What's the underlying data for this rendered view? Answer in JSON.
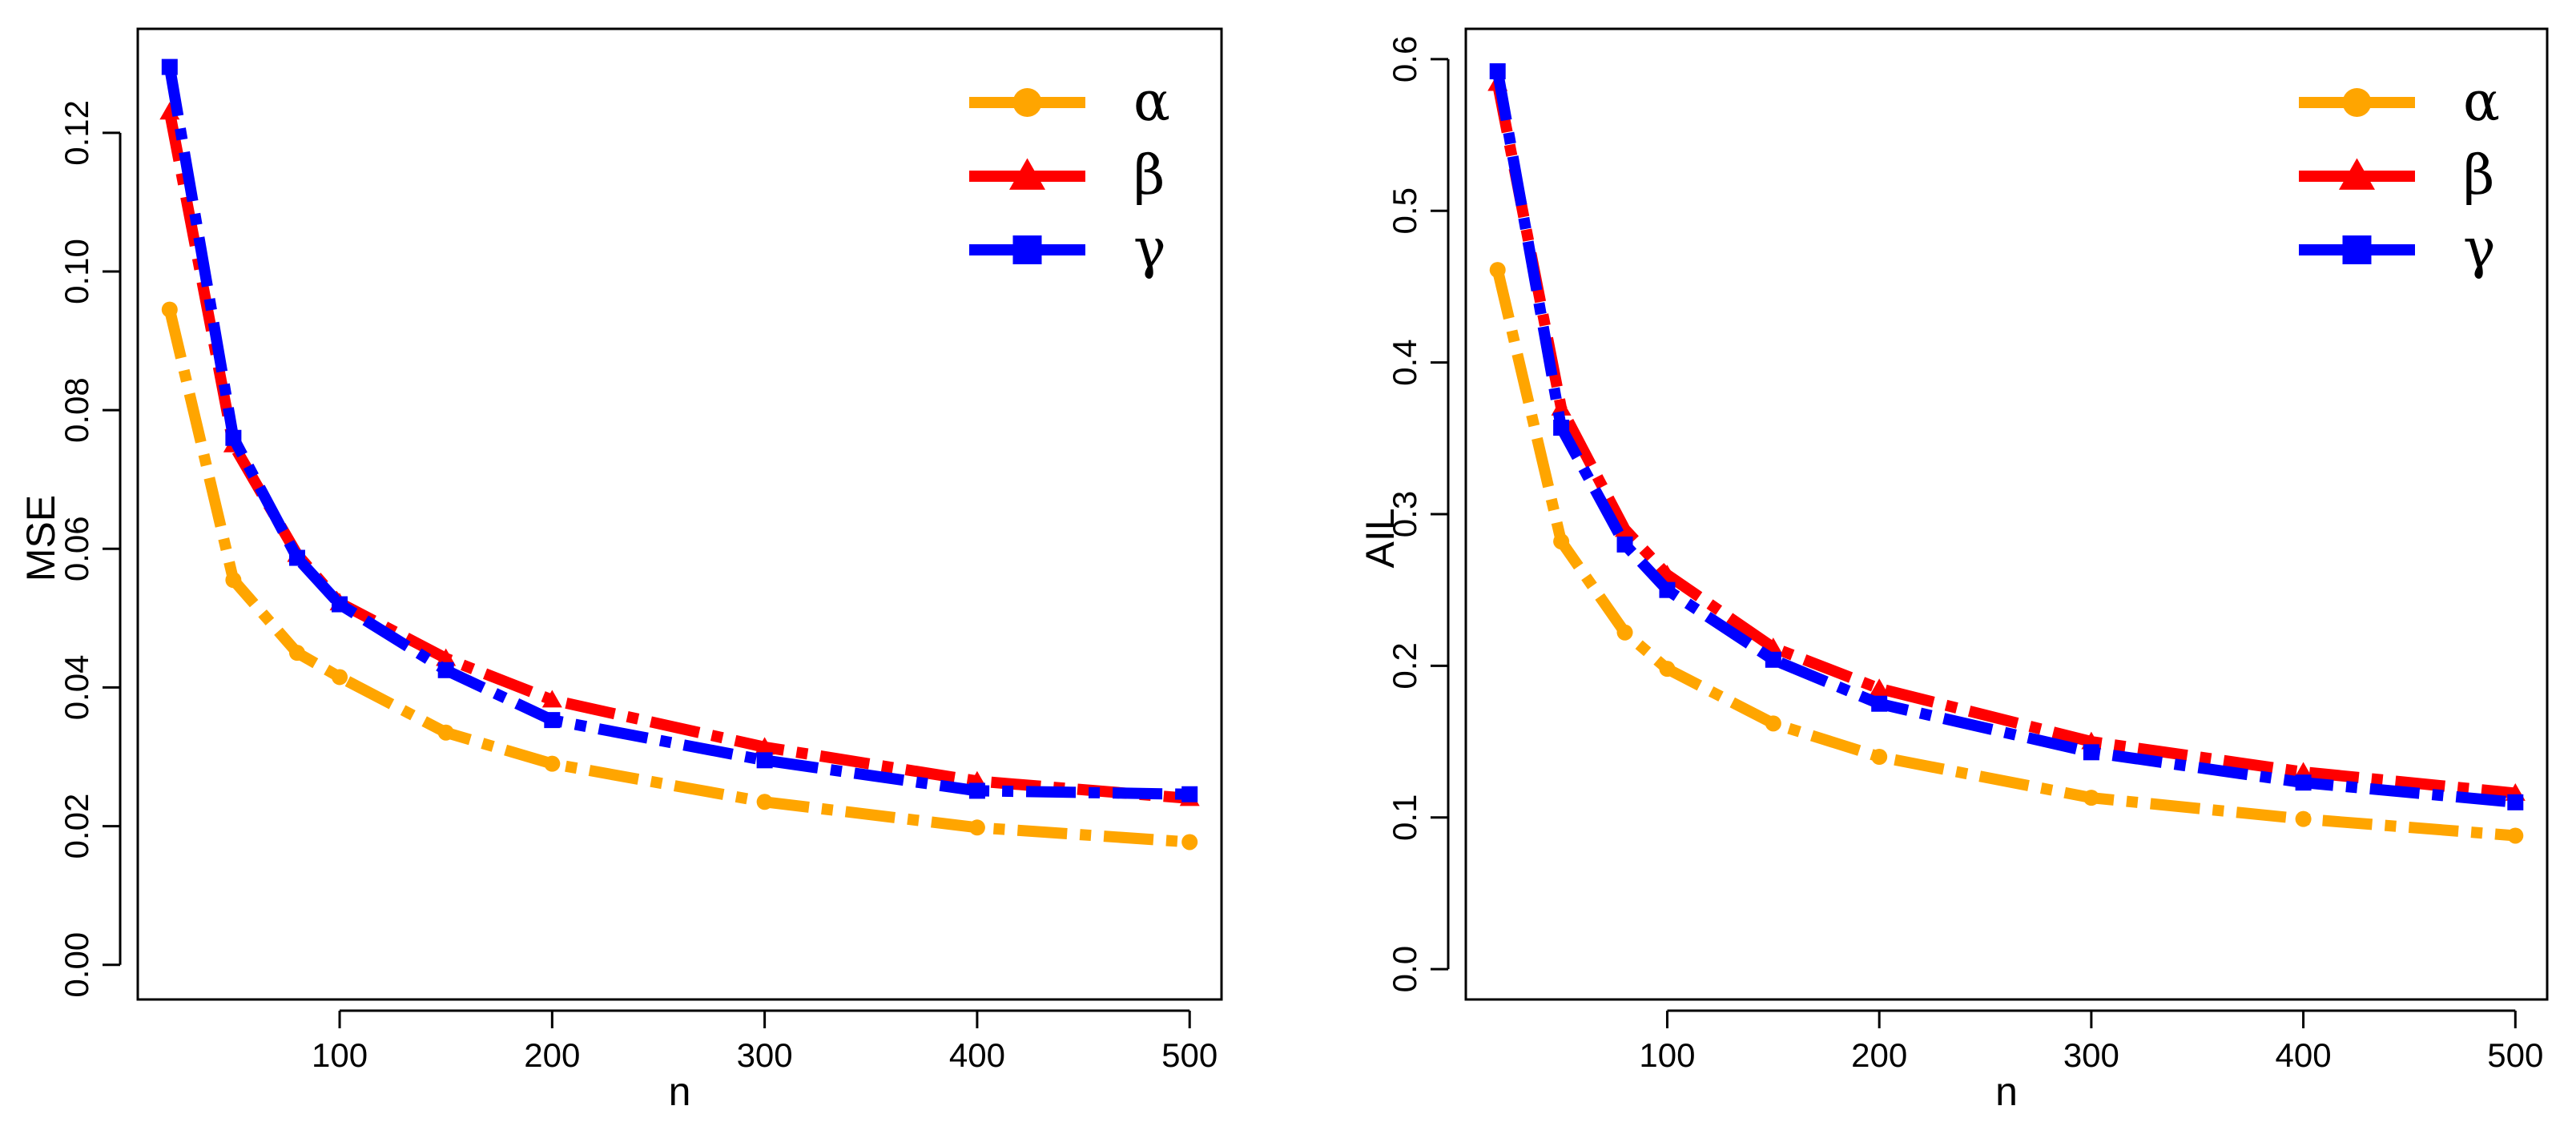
{
  "colors": {
    "alpha": "#FFA500",
    "beta": "#FF0000",
    "gamma": "#0000FF"
  },
  "chart_data": [
    {
      "type": "line",
      "xlabel": "n",
      "ylabel": "MSE",
      "x": [
        20,
        50,
        80,
        100,
        150,
        200,
        300,
        400,
        500
      ],
      "xlim": [
        5,
        515
      ],
      "ylim": [
        -0.005,
        0.135
      ],
      "xticks": [
        100,
        200,
        300,
        400,
        500
      ],
      "yticks": [
        0.0,
        0.02,
        0.04,
        0.06,
        0.08,
        0.1,
        0.12
      ],
      "ytick_labels": [
        "0.00",
        "0.02",
        "0.04",
        "0.06",
        "0.08",
        "0.10",
        "0.12"
      ],
      "legend_position": "top-right",
      "series": [
        {
          "name": "α",
          "color": "#FFA500",
          "marker": "circle",
          "values": [
            0.0945,
            0.0555,
            0.045,
            0.0415,
            0.0335,
            0.029,
            0.0235,
            0.0198,
            0.0177
          ]
        },
        {
          "name": "β",
          "color": "#FF0000",
          "marker": "triangle",
          "values": [
            0.123,
            0.075,
            0.0592,
            0.0522,
            0.0442,
            0.0382,
            0.0314,
            0.0265,
            0.024
          ]
        },
        {
          "name": "γ",
          "color": "#0000FF",
          "marker": "square",
          "values": [
            0.1295,
            0.076,
            0.0587,
            0.052,
            0.0425,
            0.0353,
            0.0295,
            0.0251,
            0.0246
          ]
        }
      ]
    },
    {
      "type": "line",
      "xlabel": "n",
      "ylabel": "AIL",
      "x": [
        20,
        50,
        80,
        100,
        150,
        200,
        300,
        400,
        500
      ],
      "xlim": [
        5,
        515
      ],
      "ylim": [
        -0.02,
        0.62
      ],
      "xticks": [
        100,
        200,
        300,
        400,
        500
      ],
      "yticks": [
        0.0,
        0.1,
        0.2,
        0.3,
        0.4,
        0.5,
        0.6
      ],
      "ytick_labels": [
        "0.0",
        "0.1",
        "0.2",
        "0.3",
        "0.4",
        "0.5",
        "0.6"
      ],
      "legend_position": "top-right",
      "series": [
        {
          "name": "α",
          "color": "#FFA500",
          "marker": "circle",
          "values": [
            0.461,
            0.282,
            0.222,
            0.198,
            0.162,
            0.14,
            0.113,
            0.099,
            0.088
          ]
        },
        {
          "name": "β",
          "color": "#FF0000",
          "marker": "triangle",
          "values": [
            0.584,
            0.37,
            0.29,
            0.26,
            0.212,
            0.185,
            0.15,
            0.13,
            0.116
          ]
        },
        {
          "name": "γ",
          "color": "#0000FF",
          "marker": "square",
          "values": [
            0.592,
            0.357,
            0.28,
            0.25,
            0.204,
            0.175,
            0.143,
            0.123,
            0.11
          ]
        }
      ]
    }
  ]
}
